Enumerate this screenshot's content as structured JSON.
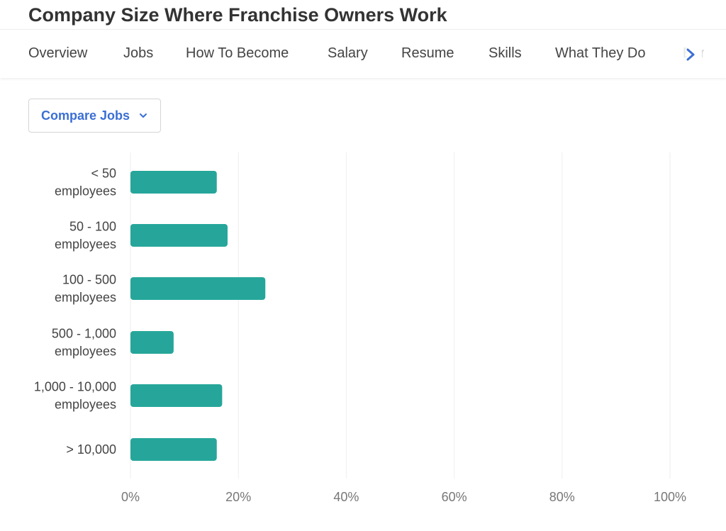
{
  "title": "Company Size Where Franchise Owners Work",
  "nav": {
    "items": [
      "Overview",
      "Jobs",
      "How To Become",
      "Salary",
      "Resume",
      "Skills",
      "What They Do"
    ],
    "overflow_text": "Benefits"
  },
  "compare_button": {
    "label": "Compare Jobs"
  },
  "colors": {
    "bar": "#26a69a",
    "grid": "#eeeeee",
    "tick": "#777777",
    "accent": "#3b6fd4"
  },
  "icons": {
    "nav_next": "chevron-right-icon",
    "dropdown": "chevron-down-icon"
  },
  "chart_data": {
    "type": "bar",
    "orientation": "horizontal",
    "categories": [
      [
        "< 50",
        "employees"
      ],
      [
        "50 - 100",
        "employees"
      ],
      [
        "100 - 500",
        "employees"
      ],
      [
        "500 - 1,000",
        "employees"
      ],
      [
        "1,000 - 10,000",
        "employees"
      ],
      [
        "> 10,000"
      ]
    ],
    "values": [
      16,
      18,
      25,
      8,
      17,
      16
    ],
    "xlim": [
      0,
      100
    ],
    "xticks": [
      "0%",
      "20%",
      "40%",
      "60%",
      "80%",
      "100%"
    ],
    "xtick_values": [
      0,
      20,
      40,
      60,
      80,
      100
    ],
    "grid": true,
    "legend": "none"
  }
}
